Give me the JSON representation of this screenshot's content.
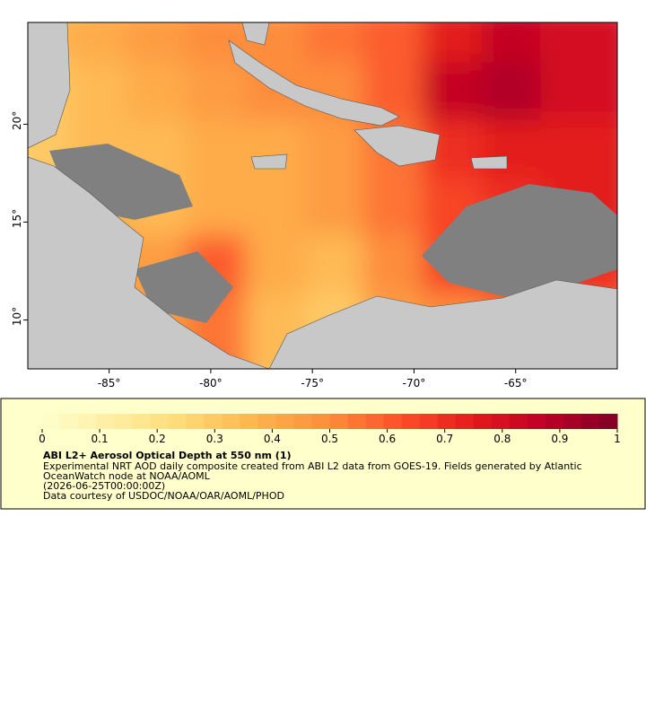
{
  "map": {
    "xlim": [
      -89,
      -60
    ],
    "ylim": [
      7.5,
      25.2
    ],
    "xticks": [
      {
        "value": -85,
        "label": "-85°"
      },
      {
        "value": -80,
        "label": "-80°"
      },
      {
        "value": -75,
        "label": "-75°"
      },
      {
        "value": -70,
        "label": "-70°"
      },
      {
        "value": -65,
        "label": "-65°"
      }
    ],
    "yticks": [
      {
        "value": 20,
        "label": "20°"
      },
      {
        "value": 15,
        "label": "15°"
      },
      {
        "value": 10,
        "label": "10°"
      }
    ],
    "aod_grid": [
      [
        0.35,
        0.4,
        0.45,
        0.5,
        0.5,
        0.55,
        0.6,
        0.75,
        0.85,
        0.8
      ],
      [
        0.3,
        0.35,
        0.4,
        0.45,
        0.5,
        0.5,
        0.6,
        0.85,
        0.9,
        0.8
      ],
      [
        0.3,
        0.35,
        0.35,
        0.4,
        0.4,
        0.45,
        0.55,
        0.7,
        0.75,
        0.75
      ],
      [
        0.35,
        0.4,
        0.35,
        0.4,
        0.4,
        0.45,
        0.55,
        0.65,
        0.7,
        0.75
      ],
      [
        0.35,
        0.4,
        0.45,
        0.6,
        0.4,
        0.35,
        0.5,
        0.65,
        0.7,
        0.7
      ],
      [
        0.4,
        0.35,
        0.45,
        0.55,
        0.35,
        0.3,
        0.45,
        0.5,
        0.55,
        0.6
      ]
    ]
  },
  "colorbar": {
    "lim": [
      0,
      1
    ],
    "ticks": [
      0,
      0.1,
      0.2,
      0.3,
      0.4,
      0.5,
      0.6,
      0.7,
      0.8,
      0.9,
      1
    ],
    "colormap": [
      "#ffffcc",
      "#ffeda0",
      "#fed976",
      "#feb24c",
      "#fd8d3c",
      "#fc4e2a",
      "#e31a1c",
      "#bd0026",
      "#800026"
    ]
  },
  "caption": {
    "title": "ABI L2+ Aerosol Optical Depth at 550 nm (1)",
    "lines": [
      "Experimental NRT AOD daily composite created from ABI L2 data from GOES-19. Fields generated by Atlantic",
      "OceanWatch node at NOAA/AOML",
      "(2026-06-25T00:00:00Z)",
      "Data courtesy of USDOC/NOAA/OAR/AOML/PHOD"
    ]
  }
}
